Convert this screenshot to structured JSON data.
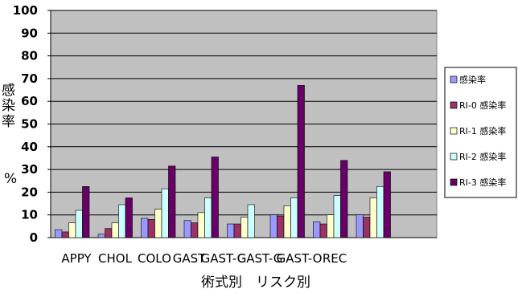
{
  "chart_data": {
    "type": "bar",
    "title": "",
    "xlabel": "術式別　リスク別",
    "ylabel": [
      "感",
      "染",
      "率",
      "%"
    ],
    "ylim": [
      0,
      100
    ],
    "yticks": [
      "0",
      "10",
      "20",
      "30",
      "40",
      "50",
      "60",
      "70",
      "80",
      "90",
      "100"
    ],
    "grid": true,
    "legend_position": "right",
    "categories": [
      "APPY",
      "CHOL",
      "COLO",
      "GAST",
      "GAST-G",
      "GAST-G",
      "GAST-O",
      "REC"
    ],
    "series": [
      {
        "name": "感染率",
        "color": "#9999ff",
        "values": [
          3.5,
          1.5,
          8.5,
          7.5,
          6,
          10,
          7,
          10
        ]
      },
      {
        "name": "RI-0 感染率",
        "color": "#993366",
        "values": [
          2.5,
          4,
          8,
          6.5,
          6,
          9.5,
          6,
          9
        ]
      },
      {
        "name": "RI-1 感染率",
        "color": "#ffffcc",
        "values": [
          6.5,
          6.5,
          12.5,
          11,
          9,
          14,
          10,
          17.5
        ]
      },
      {
        "name": "RI-2 感染率",
        "color": "#ccffff",
        "values": [
          12,
          14.5,
          21.5,
          17.5,
          14.5,
          17.5,
          18.5,
          22.5
        ]
      },
      {
        "name": "RI-3 感染率",
        "color": "#660066",
        "values": [
          22.5,
          17.5,
          31.5,
          35.5,
          0,
          67,
          34,
          29
        ]
      }
    ]
  }
}
